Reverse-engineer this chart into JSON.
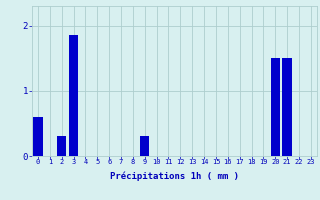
{
  "hours": [
    0,
    1,
    2,
    3,
    4,
    5,
    6,
    7,
    8,
    9,
    10,
    11,
    12,
    13,
    14,
    15,
    16,
    17,
    18,
    19,
    20,
    21,
    22,
    23
  ],
  "values": [
    0.6,
    0.0,
    0.3,
    1.85,
    0.0,
    0.0,
    0.0,
    0.0,
    0.0,
    0.3,
    0.0,
    0.0,
    0.0,
    0.0,
    0.0,
    0.0,
    0.0,
    0.0,
    0.0,
    0.0,
    1.5,
    1.5,
    0.0,
    0.0
  ],
  "bar_color": "#0000cc",
  "bg_color": "#d8f0f0",
  "grid_color": "#aecece",
  "axis_color": "#0000bb",
  "xlabel": "Précipitations 1h ( mm )",
  "xlabel_fontsize": 6.5,
  "tick_fontsize": 5.0,
  "ytick_fontsize": 6.5,
  "yticks": [
    0,
    1,
    2
  ],
  "ylim": [
    0,
    2.3
  ],
  "xlim": [
    -0.5,
    23.5
  ]
}
